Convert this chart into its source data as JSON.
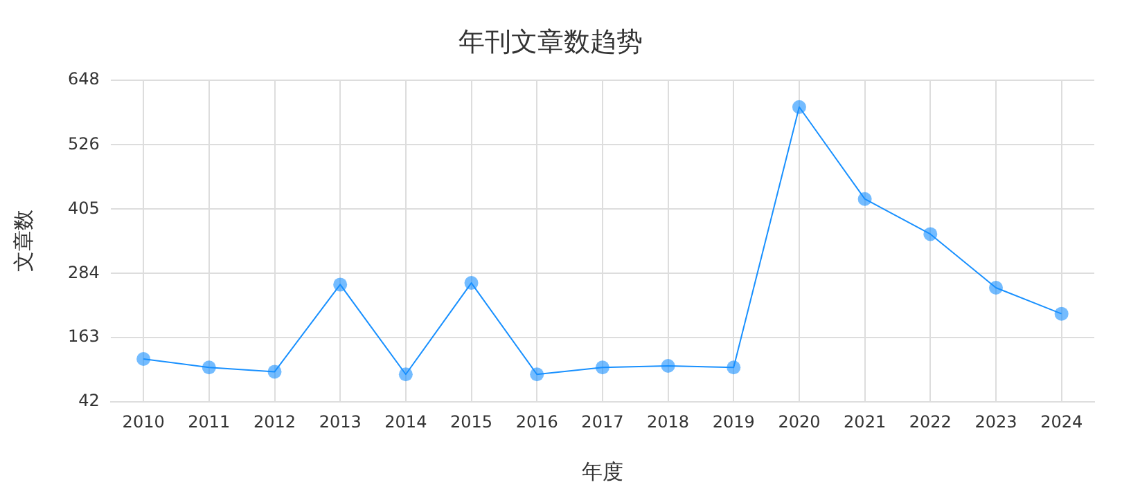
{
  "chart_data": {
    "type": "line",
    "title": "年刊文章数趋势",
    "xlabel": "年度",
    "ylabel": "文章数",
    "categories": [
      "2010",
      "2011",
      "2012",
      "2013",
      "2014",
      "2015",
      "2016",
      "2017",
      "2018",
      "2019",
      "2020",
      "2021",
      "2022",
      "2023",
      "2024"
    ],
    "series": [
      {
        "color": "#1890ff",
        "values": [
          123,
          107,
          99,
          263,
          94,
          266,
          94,
          107,
          110,
          107,
          597,
          424,
          358,
          257,
          208
        ]
      }
    ],
    "ylim": [
      42,
      648
    ],
    "yticks": [
      42,
      163,
      284,
      405,
      526,
      648
    ],
    "grid": true,
    "legend": false,
    "marker": "circle",
    "line_style": "solid"
  }
}
